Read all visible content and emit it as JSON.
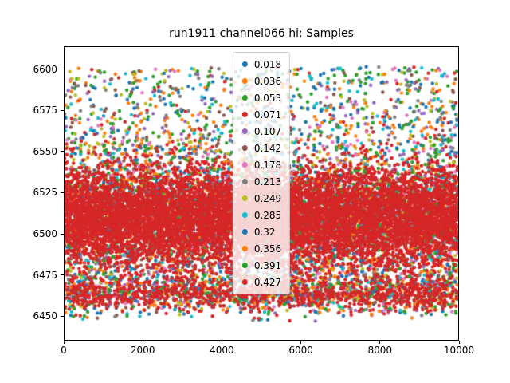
{
  "chart_data": {
    "type": "scatter",
    "title": "run1911 channel066 hi: Samples",
    "xlabel": "",
    "ylabel": "",
    "xlim": [
      0,
      10000
    ],
    "ylim": [
      6435,
      6614
    ],
    "grid": false,
    "legend_position": "upper center",
    "x_ticks": [
      {
        "value": 0,
        "label": "0"
      },
      {
        "value": 2000,
        "label": "2000"
      },
      {
        "value": 4000,
        "label": "4000"
      },
      {
        "value": 6000,
        "label": "6000"
      },
      {
        "value": 8000,
        "label": "8000"
      },
      {
        "value": 10000,
        "label": "10000"
      }
    ],
    "y_ticks": [
      {
        "value": 6450,
        "label": "6450"
      },
      {
        "value": 6475,
        "label": "6475"
      },
      {
        "value": 6500,
        "label": "6500"
      },
      {
        "value": 6525,
        "label": "6525"
      },
      {
        "value": 6550,
        "label": "6550"
      },
      {
        "value": 6575,
        "label": "6575"
      },
      {
        "value": 6600,
        "label": "6600"
      }
    ],
    "series": [
      {
        "name": "0.018",
        "color": "#1f77b4"
      },
      {
        "name": "0.036",
        "color": "#ff7f0e"
      },
      {
        "name": "0.053",
        "color": "#2ca02c"
      },
      {
        "name": "0.071",
        "color": "#d62728"
      },
      {
        "name": "0.107",
        "color": "#9467bd"
      },
      {
        "name": "0.142",
        "color": "#8c564b"
      },
      {
        "name": "0.178",
        "color": "#e377c2"
      },
      {
        "name": "0.213",
        "color": "#7f7f7f"
      },
      {
        "name": "0.249",
        "color": "#bcbd22"
      },
      {
        "name": "0.285",
        "color": "#17becf"
      },
      {
        "name": "0.32",
        "color": "#1f77b4"
      },
      {
        "name": "0.356",
        "color": "#ff7f0e"
      },
      {
        "name": "0.391",
        "color": "#2ca02c"
      },
      {
        "name": "0.427",
        "color": "#d62728"
      }
    ],
    "point_model": {
      "x_distribution": "uniform",
      "y_clip": [
        6446,
        6604
      ],
      "marker_radius_px": 2.2,
      "background_series": {
        "n": 620,
        "components": [
          {
            "kind": "normal",
            "weight": 0.72,
            "mean": 6510,
            "std": 21
          },
          {
            "kind": "normal",
            "weight": 0.16,
            "mean": 6464,
            "std": 7
          },
          {
            "kind": "uniform",
            "weight": 0.12,
            "low": 6548,
            "high": 6602
          }
        ]
      },
      "foreground_series": {
        "name": "0.427",
        "n": 9500,
        "components": [
          {
            "kind": "normal",
            "weight": 0.9,
            "mean": 6510,
            "std": 15
          },
          {
            "kind": "normal",
            "weight": 0.1,
            "mean": 6463,
            "std": 5
          }
        ]
      }
    }
  }
}
